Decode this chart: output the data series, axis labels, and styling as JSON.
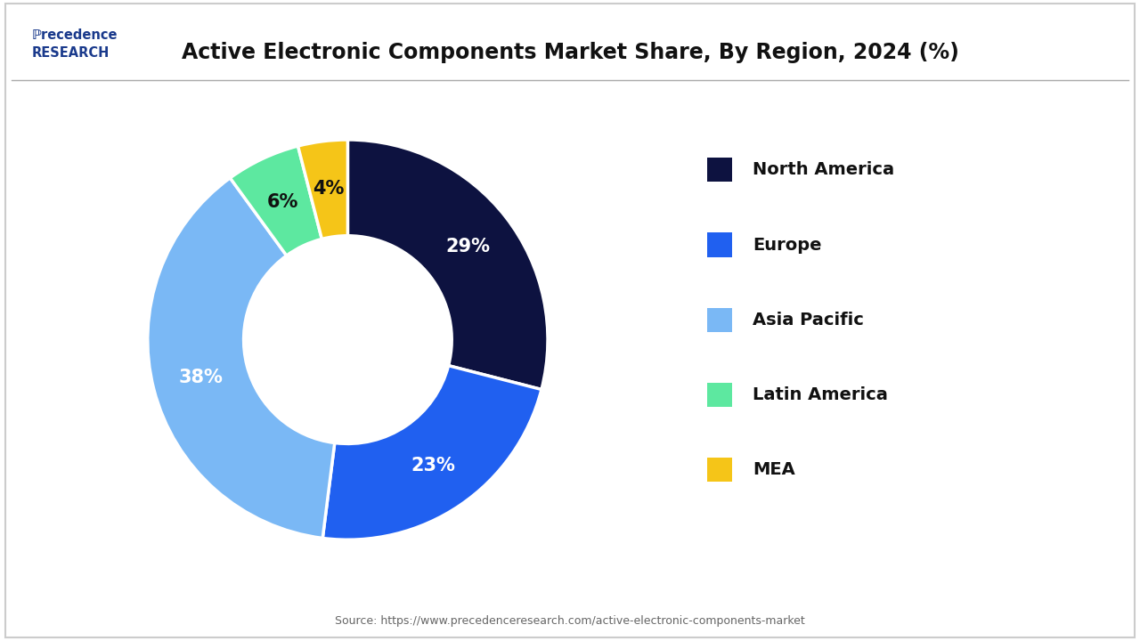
{
  "title": "Active Electronic Components Market Share, By Region, 2024 (%)",
  "segments": [
    {
      "label": "North America",
      "value": 29,
      "color": "#0d1240"
    },
    {
      "label": "Europe",
      "value": 23,
      "color": "#2060f0"
    },
    {
      "label": "Asia Pacific",
      "value": 38,
      "color": "#7ab8f5"
    },
    {
      "label": "Latin America",
      "value": 6,
      "color": "#5de8a0"
    },
    {
      "label": "MEA",
      "value": 4,
      "color": "#f5c518"
    }
  ],
  "text_colors": {
    "North America": "#ffffff",
    "Europe": "#ffffff",
    "Asia Pacific": "#ffffff",
    "Latin America": "#111111",
    "MEA": "#111111"
  },
  "source_text": "Source: https://www.precedenceresearch.com/active-electronic-components-market",
  "background_color": "#ffffff",
  "title_fontsize": 17,
  "legend_fontsize": 14,
  "pct_fontsize": 15
}
